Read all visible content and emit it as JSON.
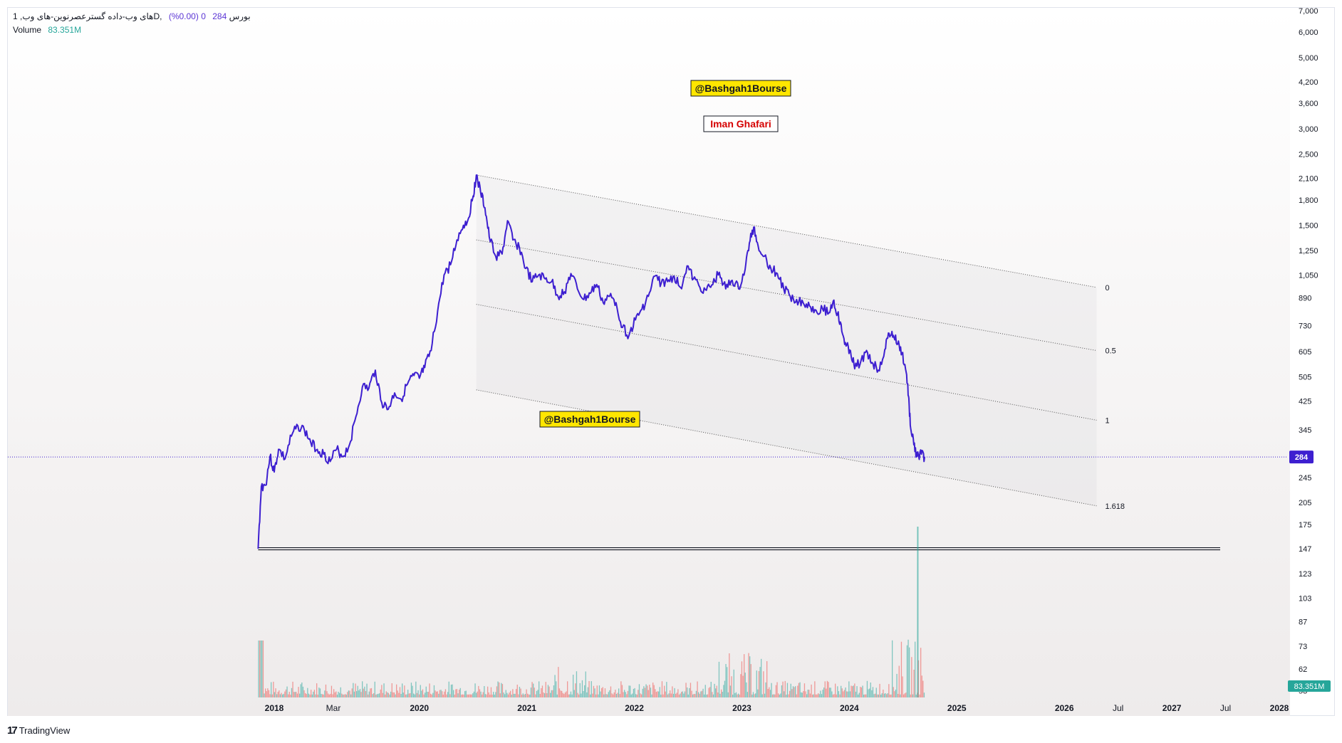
{
  "header": {
    "symbol_line": "های وب-داده گسترعصرنوین-های وب, 1D, بورس",
    "last_value": "284",
    "change": "0 (0.00%)",
    "volume_label": "Volume",
    "volume_value": "83.351M"
  },
  "annotations": {
    "watermark_top": "@Bashgah1Bourse",
    "author": "Iman Ghafari",
    "watermark_mid": "@Bashgah1Bourse"
  },
  "footer": {
    "logo_text": "TradingView"
  },
  "colors": {
    "price_line": "#3d1fd0",
    "volume_up": "#26a69a",
    "volume_down": "#ef5350",
    "badge_yellow": "#ffe600",
    "author_red": "#d50000"
  },
  "chart_data": {
    "type": "line",
    "title": "",
    "xlabel": "",
    "ylabel": "",
    "y_scale": "log",
    "x_ticks": [
      {
        "label": "2018",
        "t": 2018.1
      },
      {
        "label": "Mar",
        "t": 2018.65
      },
      {
        "label": "2020",
        "t": 2019.45
      },
      {
        "label": "2021",
        "t": 2020.45
      },
      {
        "label": "2022",
        "t": 2021.45
      },
      {
        "label": "2023",
        "t": 2022.45
      },
      {
        "label": "2024",
        "t": 2023.45
      },
      {
        "label": "2025",
        "t": 2024.45
      },
      {
        "label": "2026",
        "t": 2025.45
      },
      {
        "label": "Jul",
        "t": 2025.95
      },
      {
        "label": "2027",
        "t": 2026.45
      },
      {
        "label": "Jul",
        "t": 2026.95
      },
      {
        "label": "2028",
        "t": 2027.45
      }
    ],
    "y_ticks": [
      7000,
      6000,
      5000,
      4200,
      3600,
      3000,
      2500,
      2100,
      1800,
      1500,
      1250,
      1050,
      890,
      730,
      605,
      505,
      425,
      345,
      285,
      245,
      205,
      175,
      147,
      123,
      103,
      87,
      73,
      62,
      53
    ],
    "ylim": [
      50,
      7000
    ],
    "current_price": 284,
    "current_volume_label": "83.351M",
    "series": [
      {
        "points": [
          [
            2017.95,
            147
          ],
          [
            2017.98,
            230
          ],
          [
            2018.02,
            232
          ],
          [
            2018.06,
            285
          ],
          [
            2018.1,
            255
          ],
          [
            2018.14,
            300
          ],
          [
            2018.2,
            280
          ],
          [
            2018.26,
            330
          ],
          [
            2018.32,
            355
          ],
          [
            2018.38,
            345
          ],
          [
            2018.44,
            315
          ],
          [
            2018.5,
            300
          ],
          [
            2018.56,
            290
          ],
          [
            2018.62,
            275
          ],
          [
            2018.68,
            300
          ],
          [
            2018.74,
            285
          ],
          [
            2018.8,
            310
          ],
          [
            2018.86,
            380
          ],
          [
            2018.92,
            470
          ],
          [
            2018.98,
            465
          ],
          [
            2019.04,
            530
          ],
          [
            2019.1,
            420
          ],
          [
            2019.16,
            400
          ],
          [
            2019.22,
            450
          ],
          [
            2019.28,
            430
          ],
          [
            2019.34,
            480
          ],
          [
            2019.4,
            510
          ],
          [
            2019.45,
            500
          ],
          [
            2019.5,
            540
          ],
          [
            2019.56,
            610
          ],
          [
            2019.62,
            810
          ],
          [
            2019.68,
            1050
          ],
          [
            2019.74,
            1130
          ],
          [
            2019.8,
            1350
          ],
          [
            2019.86,
            1500
          ],
          [
            2019.9,
            1550
          ],
          [
            2019.95,
            1850
          ],
          [
            2019.98,
            2150
          ],
          [
            2020.02,
            1900
          ],
          [
            2020.06,
            1700
          ],
          [
            2020.1,
            1380
          ],
          [
            2020.16,
            1200
          ],
          [
            2020.22,
            1220
          ],
          [
            2020.27,
            1550
          ],
          [
            2020.32,
            1350
          ],
          [
            2020.38,
            1280
          ],
          [
            2020.44,
            1100
          ],
          [
            2020.5,
            1000
          ],
          [
            2020.56,
            1050
          ],
          [
            2020.62,
            1020
          ],
          [
            2020.68,
            1000
          ],
          [
            2020.74,
            900
          ],
          [
            2020.8,
            930
          ],
          [
            2020.86,
            1060
          ],
          [
            2020.92,
            950
          ],
          [
            2020.98,
            880
          ],
          [
            2021.04,
            920
          ],
          [
            2021.1,
            980
          ],
          [
            2021.16,
            860
          ],
          [
            2021.22,
            900
          ],
          [
            2021.28,
            860
          ],
          [
            2021.34,
            720
          ],
          [
            2021.4,
            680
          ],
          [
            2021.46,
            760
          ],
          [
            2021.52,
            820
          ],
          [
            2021.58,
            900
          ],
          [
            2021.64,
            1040
          ],
          [
            2021.7,
            990
          ],
          [
            2021.76,
            1000
          ],
          [
            2021.82,
            1040
          ],
          [
            2021.88,
            960
          ],
          [
            2021.94,
            1120
          ],
          [
            2022.0,
            1020
          ],
          [
            2022.06,
            960
          ],
          [
            2022.12,
            940
          ],
          [
            2022.18,
            980
          ],
          [
            2022.24,
            1070
          ],
          [
            2022.3,
            950
          ],
          [
            2022.36,
            1010
          ],
          [
            2022.42,
            950
          ],
          [
            2022.48,
            1090
          ],
          [
            2022.52,
            1320
          ],
          [
            2022.56,
            1480
          ],
          [
            2022.6,
            1300
          ],
          [
            2022.66,
            1200
          ],
          [
            2022.72,
            1100
          ],
          [
            2022.78,
            1060
          ],
          [
            2022.84,
            950
          ],
          [
            2022.9,
            900
          ],
          [
            2022.96,
            880
          ],
          [
            2023.02,
            860
          ],
          [
            2023.08,
            840
          ],
          [
            2023.14,
            815
          ],
          [
            2023.2,
            825
          ],
          [
            2023.26,
            800
          ],
          [
            2023.3,
            870
          ],
          [
            2023.34,
            795
          ],
          [
            2023.38,
            700
          ],
          [
            2023.42,
            630
          ],
          [
            2023.46,
            610
          ],
          [
            2023.5,
            535
          ],
          [
            2023.56,
            570
          ],
          [
            2023.62,
            600
          ],
          [
            2023.66,
            560
          ],
          [
            2023.72,
            530
          ],
          [
            2023.78,
            615
          ],
          [
            2023.82,
            690
          ],
          [
            2023.86,
            680
          ],
          [
            2023.9,
            640
          ],
          [
            2023.94,
            600
          ],
          [
            2023.98,
            520
          ],
          [
            2024.0,
            440
          ],
          [
            2024.02,
            350
          ],
          [
            2024.05,
            310
          ],
          [
            2024.08,
            285
          ],
          [
            2024.12,
            290
          ],
          [
            2024.15,
            284
          ]
        ]
      }
    ],
    "volume": {
      "spike_t": 2024.08
    },
    "fib_channel": {
      "levels": [
        "0",
        "0.5",
        "1",
        "1.618"
      ],
      "t_start": 2019.98,
      "t_end": 2025.75,
      "start_values": [
        2150,
        1350,
        850,
        460
      ],
      "end_values": [
        960,
        610,
        370,
        200
      ]
    },
    "support_line": {
      "value": 147,
      "t_start": 2017.95,
      "t_end": 2026.9
    }
  }
}
